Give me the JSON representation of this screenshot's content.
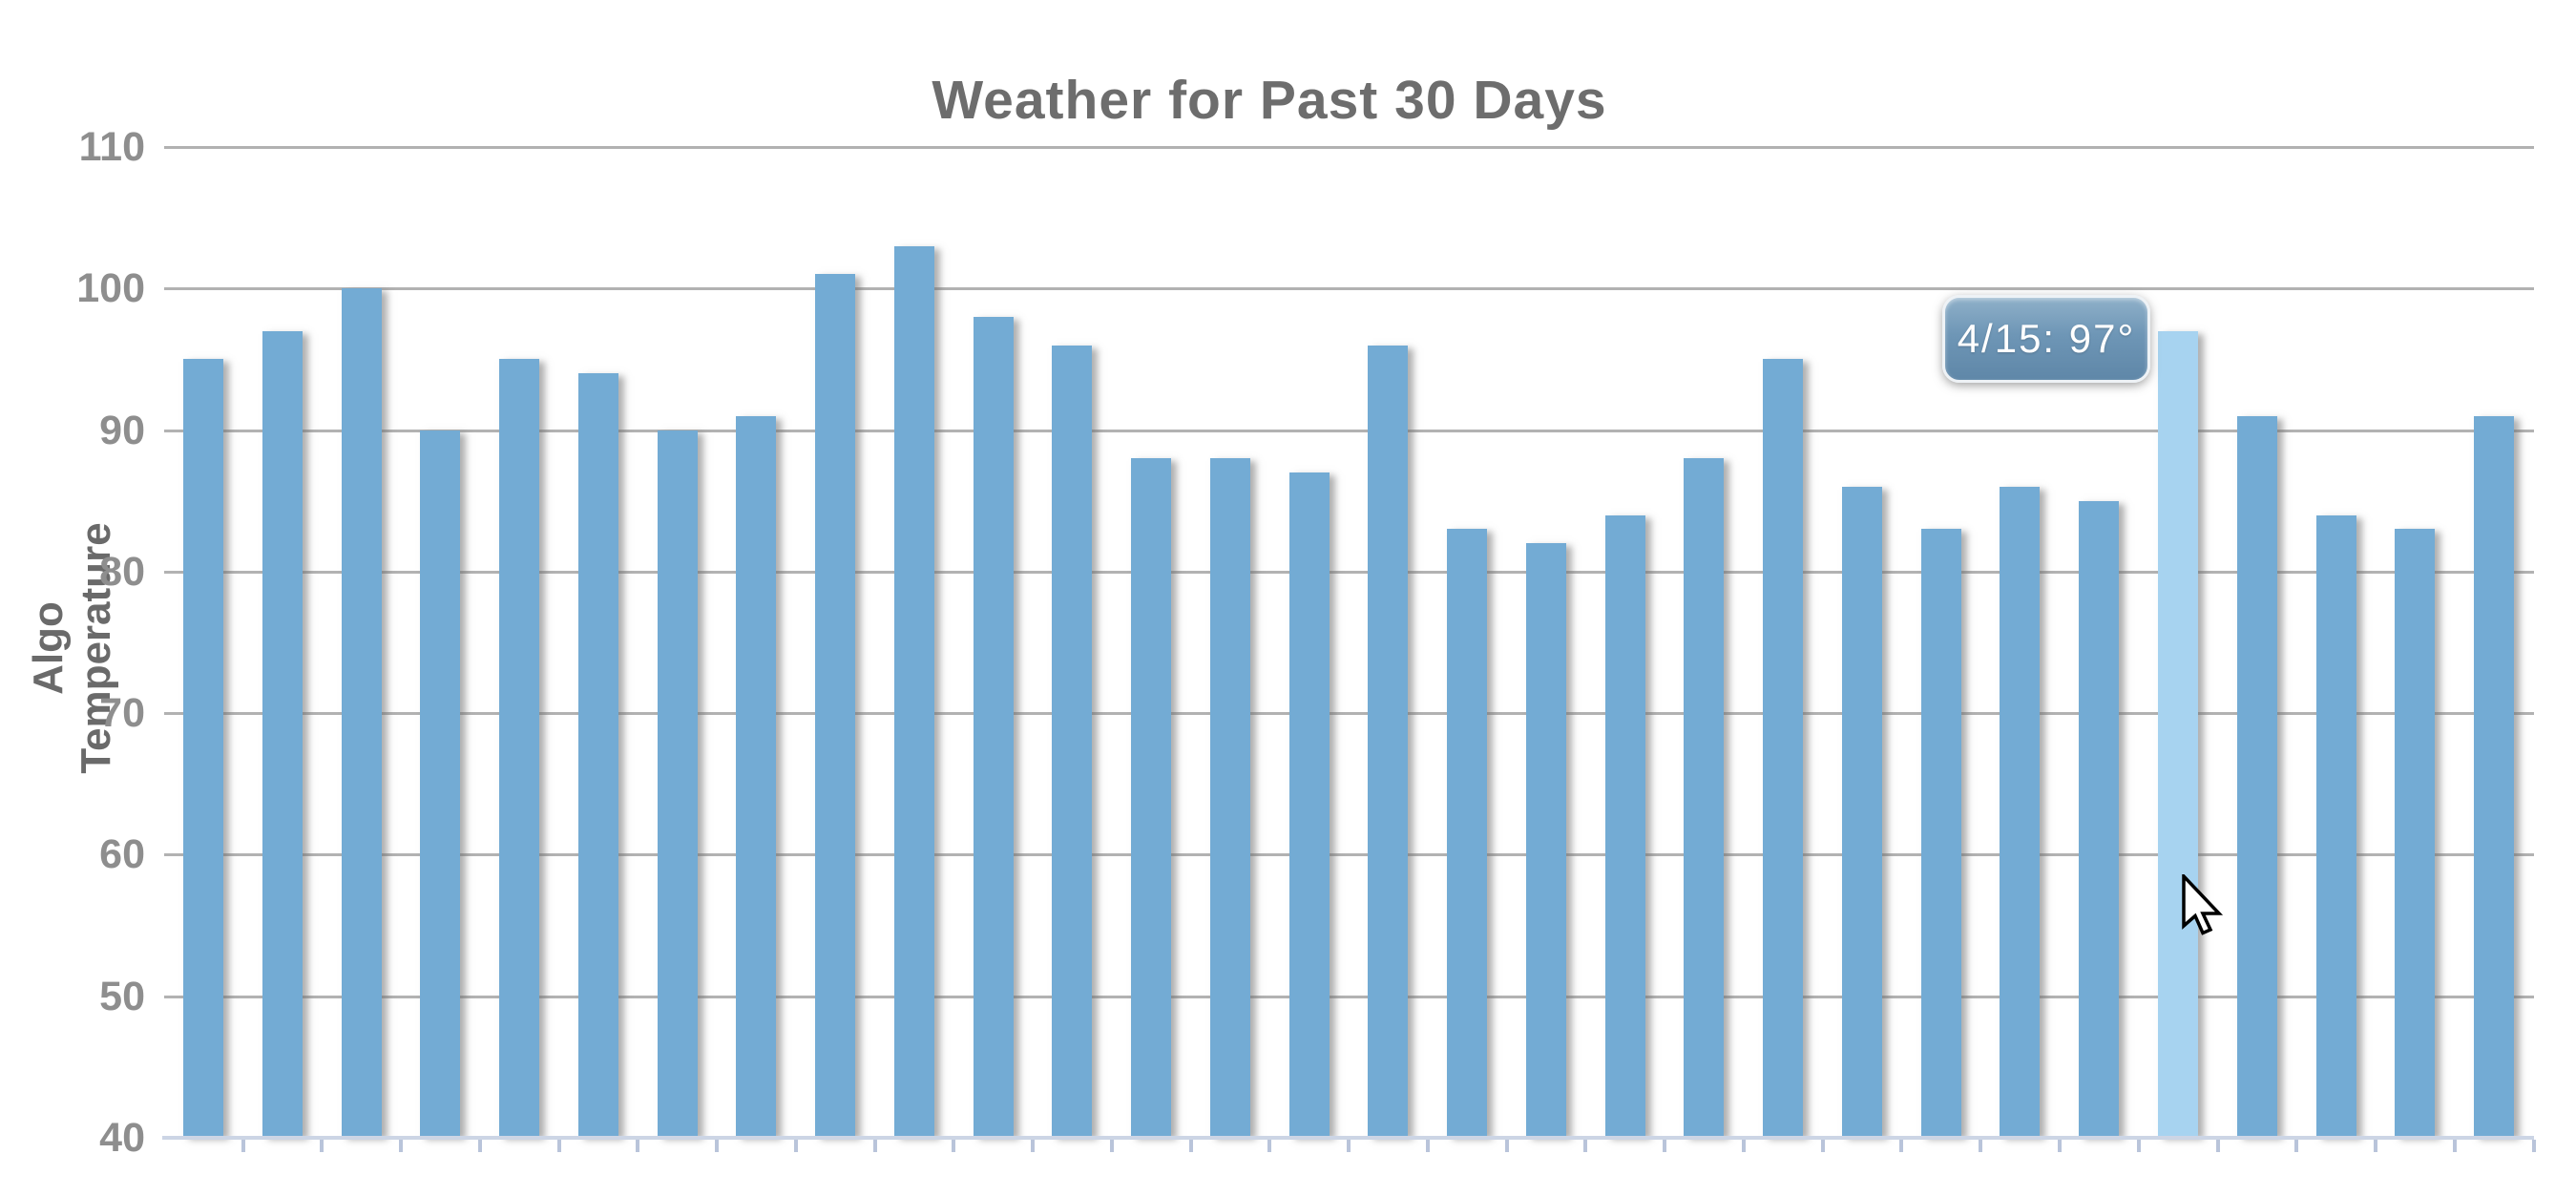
{
  "chart_data": {
    "type": "bar",
    "title": "Weather for Past 30 Days",
    "ylabel": "Algo Temperature",
    "xlabel": "",
    "values": [
      95,
      97,
      100,
      90,
      95,
      94,
      90,
      91,
      101,
      103,
      98,
      96,
      88,
      88,
      87,
      96,
      83,
      82,
      84,
      88,
      95,
      86,
      83,
      86,
      85,
      97,
      91,
      84,
      83,
      91
    ],
    "highlight_index": 25,
    "y_ticks": [
      110,
      100,
      90,
      80,
      70,
      60,
      50,
      40
    ],
    "ylim": [
      40,
      110
    ],
    "grid": true,
    "legend": "none",
    "tooltip_text": "4/15: 97°"
  },
  "ui": {
    "title": "Weather for Past 30 Days",
    "y_axis_label": "Algo Temperature",
    "tooltip": {
      "text": "4/15: 97°"
    },
    "colors": {
      "bar": "#73abd4",
      "bar_highlight": "#a7d3f0",
      "gridline": "#b2b2b2",
      "axis_line": "#ccd5e5",
      "x_tick": "#b9c4da",
      "title_text": "#6d6d6d",
      "tick_label_text": "#8e8e8e",
      "tooltip_text": "#ffffff",
      "tooltip_top": "#8fb0c9",
      "tooltip_bottom": "#5f87a8"
    }
  }
}
